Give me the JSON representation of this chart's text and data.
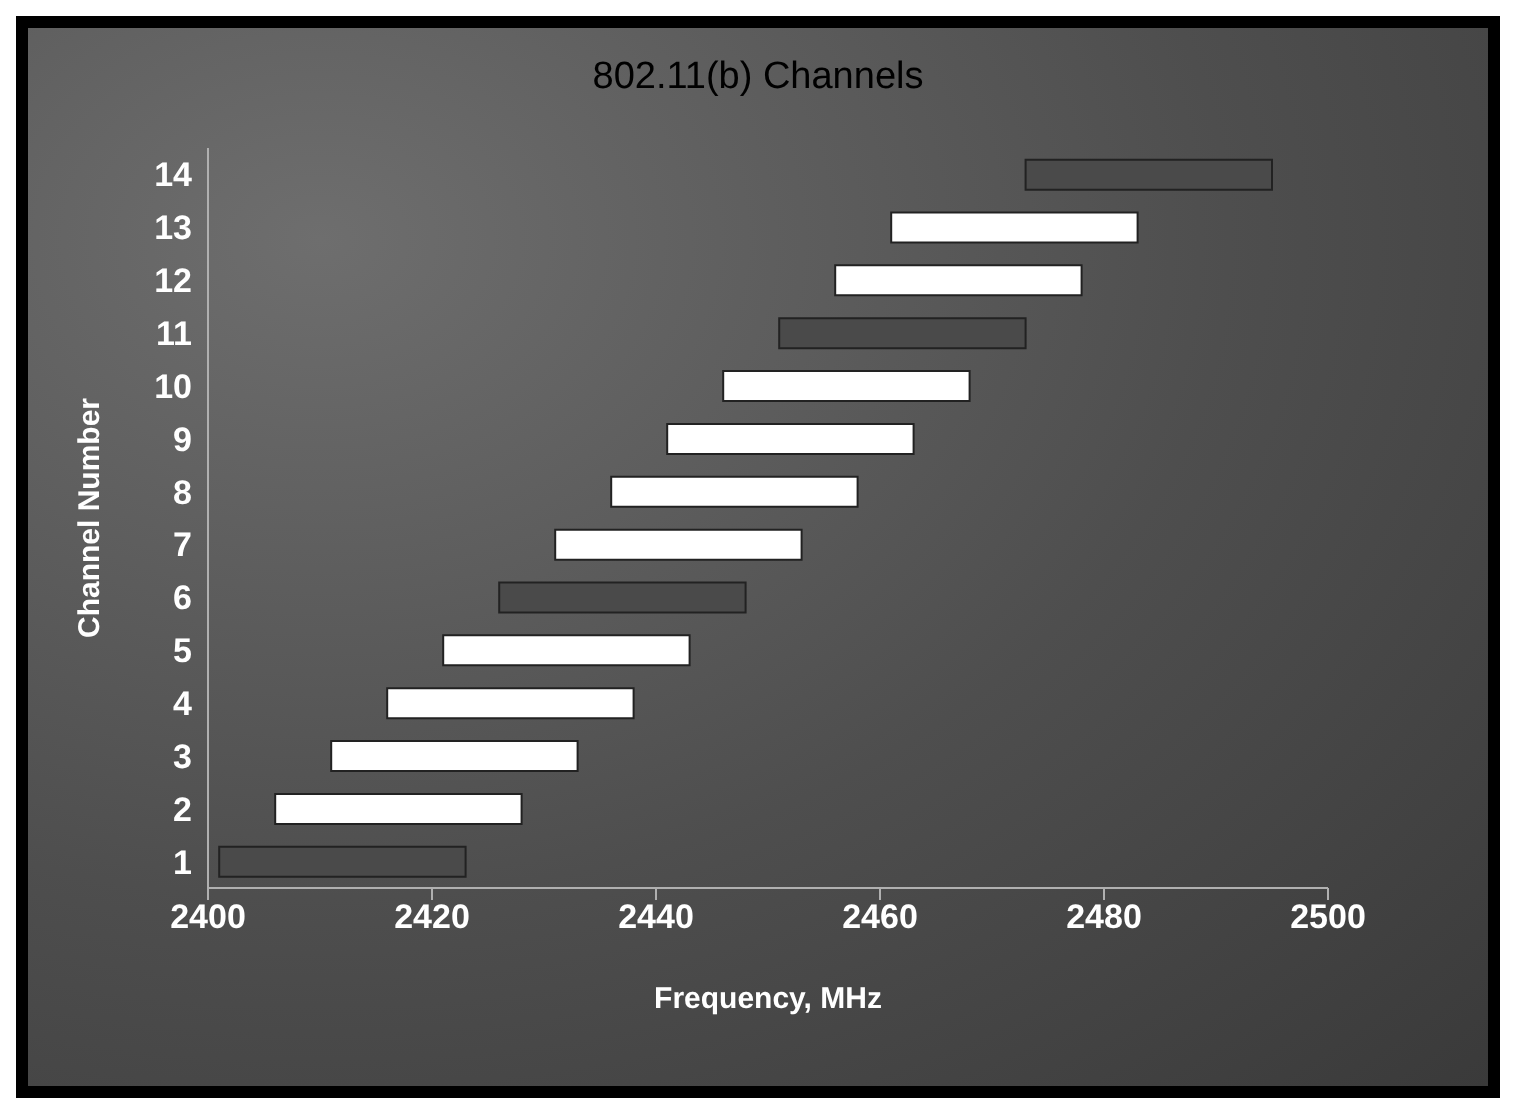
{
  "chart_data": {
    "type": "bar",
    "title": "802.11(b) Channels",
    "xlabel": "Frequency, MHz",
    "ylabel": "Channel Number",
    "orientation": "horizontal",
    "categories": [
      "14",
      "13",
      "12",
      "11",
      "10",
      "9",
      "8",
      "7",
      "6",
      "5",
      "4",
      "3",
      "2",
      "1"
    ],
    "base": [
      2473,
      2461,
      2456,
      2451,
      2446,
      2441,
      2436,
      2431,
      2426,
      2421,
      2416,
      2411,
      2406,
      2401
    ],
    "values": [
      22,
      22,
      22,
      22,
      22,
      22,
      22,
      22,
      22,
      22,
      22,
      22,
      22,
      22
    ],
    "colors": [
      "#4a4a4a",
      "#ffffff",
      "#ffffff",
      "#4a4a4a",
      "#ffffff",
      "#ffffff",
      "#ffffff",
      "#ffffff",
      "#4a4a4a",
      "#ffffff",
      "#ffffff",
      "#ffffff",
      "#ffffff",
      "#4a4a4a"
    ],
    "xlim": [
      2400,
      2500
    ],
    "xticks": [
      2400,
      2420,
      2440,
      2460,
      2480,
      2500
    ]
  }
}
